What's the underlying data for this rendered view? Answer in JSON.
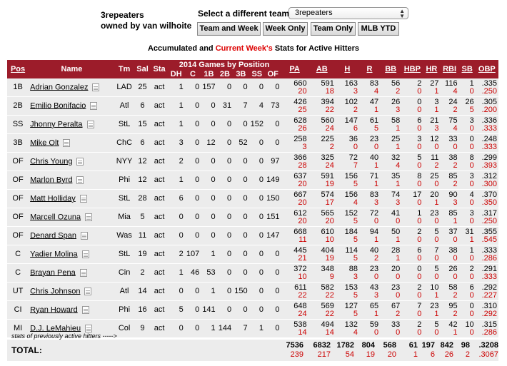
{
  "team": {
    "name": "3repeaters",
    "owner": "owned by van wilhoite"
  },
  "selector": {
    "label": "Select a different team:",
    "value": "3repeaters"
  },
  "buttons": [
    "Team and Week",
    "Week Only",
    "Team Only",
    "MLB YTD"
  ],
  "subtitle": {
    "pre": "Accumulated and ",
    "highlight": "Current Week's",
    "post": " Stats for Active Hitters"
  },
  "colors": {
    "header_bg": "#9c1c2a",
    "row_bg": "#ececec",
    "current_week": "#cc0000"
  },
  "headers": {
    "pos": "Pos",
    "name": "Name",
    "tm": "Tm",
    "sal": "Sal",
    "sta": "Sta",
    "games_group": "2014 Games by Position",
    "gpos": [
      "DH",
      "C",
      "1B",
      "2B",
      "3B",
      "SS",
      "OF"
    ],
    "stats": [
      "PA",
      "AB",
      "H",
      "R",
      "BB",
      "HBP",
      "HR",
      "RBI",
      "SB",
      "OBP"
    ]
  },
  "players": [
    {
      "pos": "1B",
      "name": "Adrian Gonzalez",
      "tm": "LAD",
      "sal": "25",
      "sta": "act",
      "g": [
        "1",
        "0",
        "157",
        "0",
        "0",
        "0",
        "0"
      ],
      "s": [
        "660",
        "591",
        "163",
        "83",
        "56",
        "2",
        "27",
        "116",
        "1",
        ".335"
      ],
      "w": [
        "20",
        "18",
        "3",
        "4",
        "2",
        "0",
        "1",
        "4",
        "0",
        ".250"
      ]
    },
    {
      "pos": "2B",
      "name": "Emilio Bonifacio",
      "tm": "Atl",
      "sal": "6",
      "sta": "act",
      "g": [
        "1",
        "0",
        "0",
        "31",
        "7",
        "4",
        "73"
      ],
      "s": [
        "426",
        "394",
        "102",
        "47",
        "26",
        "0",
        "3",
        "24",
        "26",
        ".305"
      ],
      "w": [
        "25",
        "22",
        "2",
        "1",
        "3",
        "0",
        "1",
        "2",
        "5",
        ".200"
      ]
    },
    {
      "pos": "SS",
      "name": "Jhonny Peralta",
      "tm": "StL",
      "sal": "15",
      "sta": "act",
      "g": [
        "1",
        "0",
        "0",
        "0",
        "0",
        "152",
        "0"
      ],
      "s": [
        "628",
        "560",
        "147",
        "61",
        "58",
        "6",
        "21",
        "75",
        "3",
        ".336"
      ],
      "w": [
        "26",
        "24",
        "6",
        "5",
        "1",
        "0",
        "3",
        "4",
        "0",
        ".333"
      ]
    },
    {
      "pos": "3B",
      "name": "Mike Olt",
      "tm": "ChC",
      "sal": "6",
      "sta": "act",
      "g": [
        "3",
        "0",
        "12",
        "0",
        "52",
        "0",
        "0"
      ],
      "s": [
        "258",
        "225",
        "36",
        "23",
        "25",
        "3",
        "12",
        "33",
        "0",
        ".248"
      ],
      "w": [
        "3",
        "2",
        "0",
        "0",
        "1",
        "0",
        "0",
        "0",
        "0",
        ".333"
      ]
    },
    {
      "pos": "OF",
      "name": "Chris Young",
      "tm": "NYY",
      "sal": "12",
      "sta": "act",
      "g": [
        "2",
        "0",
        "0",
        "0",
        "0",
        "0",
        "97"
      ],
      "s": [
        "366",
        "325",
        "72",
        "40",
        "32",
        "5",
        "11",
        "38",
        "8",
        ".299"
      ],
      "w": [
        "28",
        "24",
        "7",
        "1",
        "4",
        "0",
        "2",
        "2",
        "0",
        ".393"
      ]
    },
    {
      "pos": "OF",
      "name": "Marlon Byrd",
      "tm": "Phi",
      "sal": "12",
      "sta": "act",
      "g": [
        "1",
        "0",
        "0",
        "0",
        "0",
        "0",
        "149"
      ],
      "s": [
        "637",
        "591",
        "156",
        "71",
        "35",
        "8",
        "25",
        "85",
        "3",
        ".312"
      ],
      "w": [
        "20",
        "19",
        "5",
        "1",
        "1",
        "0",
        "0",
        "2",
        "0",
        ".300"
      ]
    },
    {
      "pos": "OF",
      "name": "Matt Holliday",
      "tm": "StL",
      "sal": "28",
      "sta": "act",
      "g": [
        "6",
        "0",
        "0",
        "0",
        "0",
        "0",
        "150"
      ],
      "s": [
        "667",
        "574",
        "156",
        "83",
        "74",
        "17",
        "20",
        "90",
        "4",
        ".370"
      ],
      "w": [
        "20",
        "17",
        "4",
        "3",
        "3",
        "0",
        "1",
        "3",
        "0",
        ".350"
      ]
    },
    {
      "pos": "OF",
      "name": "Marcell Ozuna",
      "tm": "Mia",
      "sal": "5",
      "sta": "act",
      "g": [
        "0",
        "0",
        "0",
        "0",
        "0",
        "0",
        "151"
      ],
      "s": [
        "612",
        "565",
        "152",
        "72",
        "41",
        "1",
        "23",
        "85",
        "3",
        ".317"
      ],
      "w": [
        "20",
        "20",
        "5",
        "0",
        "0",
        "0",
        "0",
        "1",
        "0",
        ".250"
      ]
    },
    {
      "pos": "OF",
      "name": "Denard Span",
      "tm": "Was",
      "sal": "11",
      "sta": "act",
      "g": [
        "0",
        "0",
        "0",
        "0",
        "0",
        "0",
        "147"
      ],
      "s": [
        "668",
        "610",
        "184",
        "94",
        "50",
        "2",
        "5",
        "37",
        "31",
        ".355"
      ],
      "w": [
        "11",
        "10",
        "5",
        "1",
        "1",
        "0",
        "0",
        "0",
        "1",
        ".545"
      ]
    },
    {
      "pos": "C",
      "name": "Yadier Molina",
      "tm": "StL",
      "sal": "19",
      "sta": "act",
      "g": [
        "2",
        "107",
        "1",
        "0",
        "0",
        "0",
        "0"
      ],
      "s": [
        "445",
        "404",
        "114",
        "40",
        "28",
        "6",
        "7",
        "38",
        "1",
        ".333"
      ],
      "w": [
        "21",
        "19",
        "5",
        "2",
        "1",
        "0",
        "0",
        "0",
        "0",
        ".286"
      ]
    },
    {
      "pos": "C",
      "name": "Brayan Pena",
      "tm": "Cin",
      "sal": "2",
      "sta": "act",
      "g": [
        "1",
        "46",
        "53",
        "0",
        "0",
        "0",
        "0"
      ],
      "s": [
        "372",
        "348",
        "88",
        "23",
        "20",
        "0",
        "5",
        "26",
        "2",
        ".291"
      ],
      "w": [
        "10",
        "9",
        "3",
        "0",
        "0",
        "0",
        "0",
        "0",
        "0",
        ".333"
      ]
    },
    {
      "pos": "UT",
      "name": "Chris Johnson",
      "tm": "Atl",
      "sal": "14",
      "sta": "act",
      "g": [
        "0",
        "0",
        "1",
        "0",
        "150",
        "0",
        "0"
      ],
      "s": [
        "611",
        "582",
        "153",
        "43",
        "23",
        "2",
        "10",
        "58",
        "6",
        ".292"
      ],
      "w": [
        "22",
        "22",
        "5",
        "3",
        "0",
        "0",
        "1",
        "2",
        "0",
        ".227"
      ]
    },
    {
      "pos": "CI",
      "name": "Ryan Howard",
      "tm": "Phi",
      "sal": "16",
      "sta": "act",
      "g": [
        "5",
        "0",
        "141",
        "0",
        "0",
        "0",
        "0"
      ],
      "s": [
        "648",
        "569",
        "127",
        "65",
        "67",
        "7",
        "23",
        "95",
        "0",
        ".310"
      ],
      "w": [
        "24",
        "22",
        "5",
        "1",
        "2",
        "0",
        "1",
        "2",
        "0",
        ".292"
      ]
    },
    {
      "pos": "MI",
      "name": "D.J. LeMahieu",
      "tm": "Col",
      "sal": "9",
      "sta": "act",
      "g": [
        "0",
        "0",
        "1",
        "144",
        "7",
        "1",
        "0"
      ],
      "s": [
        "538",
        "494",
        "132",
        "59",
        "33",
        "2",
        "5",
        "42",
        "10",
        ".315"
      ],
      "w": [
        "14",
        "14",
        "4",
        "0",
        "0",
        "0",
        "0",
        "1",
        "0",
        ".286"
      ]
    }
  ],
  "prev_note": "stats of previously active hitters ----->",
  "total": {
    "label": "TOTAL:",
    "s": [
      "7536",
      "6832",
      "1782",
      "804",
      "568",
      "61",
      "197",
      "842",
      "98",
      ".3208"
    ],
    "w": [
      "239",
      "217",
      "54",
      "19",
      "20",
      "1",
      "6",
      "26",
      "2",
      ".3067"
    ]
  }
}
